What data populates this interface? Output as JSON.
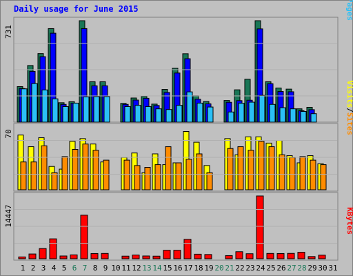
{
  "title": "Daily usage for June 2015",
  "colors": {
    "background": "#c0c0c0",
    "plot_background": "#c0c0c0",
    "title": "#0000ff",
    "hits": "#197656",
    "files": "#0000ff",
    "pages": "#2bc0f6",
    "visits": "#ffff00",
    "sites": "#ff8c00",
    "kbytes": "#ff0000",
    "weekend_day": "#197656",
    "weekday": "#000000"
  },
  "chart_data": [
    {
      "type": "bar",
      "name": "hits-files-pages",
      "ymax_label": "731",
      "ymax": 731,
      "legend": [
        "Pages",
        "Files",
        "Hits"
      ],
      "legend_colors": [
        "#2bc0f6",
        "#0000ff",
        "#197656"
      ],
      "days": [
        1,
        2,
        3,
        4,
        5,
        6,
        7,
        8,
        9,
        10,
        11,
        12,
        13,
        14,
        15,
        16,
        17,
        18,
        19,
        20,
        21,
        22,
        23,
        24,
        25,
        26,
        27,
        28,
        29,
        30,
        31
      ],
      "series": [
        {
          "name": "Hits",
          "values": [
            256,
            408,
            494,
            674,
            140,
            147,
            731,
            291,
            291,
            0,
            135,
            174,
            186,
            130,
            236,
            388,
            493,
            190,
            149,
            0,
            156,
            233,
            309,
            731,
            291,
            246,
            238,
            96,
            107,
            0,
            0
          ]
        },
        {
          "name": "Files",
          "values": [
            242,
            366,
            472,
            641,
            128,
            137,
            674,
            262,
            262,
            0,
            128,
            159,
            172,
            120,
            214,
            354,
            457,
            165,
            132,
            0,
            143,
            155,
            158,
            672,
            277,
            221,
            219,
            82,
            90,
            0,
            0
          ]
        },
        {
          "name": "Pages",
          "values": [
            240,
            278,
            232,
            168,
            112,
            137,
            182,
            184,
            184,
            0,
            112,
            121,
            112,
            96,
            91,
            121,
            218,
            137,
            109,
            0,
            73,
            136,
            144,
            193,
            128,
            104,
            96,
            77,
            61,
            0,
            0
          ]
        }
      ]
    },
    {
      "type": "bar",
      "name": "visits-sites",
      "ymax_label": "70",
      "ymax": 70,
      "legend": [
        "Sites",
        "Visits"
      ],
      "legend_colors": [
        "#ff8c00",
        "#ffff00"
      ],
      "days": [
        1,
        2,
        3,
        4,
        5,
        6,
        7,
        8,
        9,
        10,
        11,
        12,
        13,
        14,
        15,
        16,
        17,
        18,
        19,
        20,
        21,
        22,
        23,
        24,
        25,
        26,
        27,
        28,
        29,
        30,
        31
      ],
      "series": [
        {
          "name": "Visits",
          "values": [
            61,
            48,
            58,
            26,
            23,
            54,
            57,
            51,
            31,
            0,
            36,
            41,
            19,
            40,
            28,
            30,
            65,
            53,
            27,
            0,
            57,
            39,
            59,
            59,
            52,
            55,
            38,
            30,
            38,
            29,
            0
          ]
        },
        {
          "name": "Sites",
          "values": [
            31,
            31,
            49,
            19,
            37,
            45,
            51,
            44,
            33,
            0,
            33,
            27,
            25,
            28,
            48,
            30,
            34,
            40,
            19,
            0,
            46,
            48,
            44,
            54,
            48,
            39,
            36,
            37,
            33,
            28,
            0
          ]
        }
      ]
    },
    {
      "type": "bar",
      "name": "kbytes",
      "ymax_label": "14447",
      "ymax": 14447,
      "legend": [
        "KBytes"
      ],
      "legend_colors": [
        "#ff0000"
      ],
      "days": [
        1,
        2,
        3,
        4,
        5,
        6,
        7,
        8,
        9,
        10,
        11,
        12,
        13,
        14,
        15,
        16,
        17,
        18,
        19,
        20,
        21,
        22,
        23,
        24,
        25,
        26,
        27,
        28,
        29,
        30,
        31
      ],
      "series": [
        {
          "name": "KBytes",
          "values": [
            424,
            1097,
            2348,
            4583,
            636,
            899,
            10025,
            1197,
            1221,
            0,
            600,
            860,
            636,
            596,
            1950,
            1950,
            4465,
            1050,
            976,
            0,
            720,
            1622,
            1156,
            14447,
            1221,
            1196,
            1231,
            1505,
            502,
            826,
            0
          ]
        }
      ]
    }
  ],
  "x_axis": {
    "labels": [
      "1",
      "2",
      "3",
      "4",
      "5",
      "6",
      "7",
      "8",
      "9",
      "10",
      "11",
      "12",
      "13",
      "14",
      "15",
      "16",
      "17",
      "18",
      "19",
      "20",
      "21",
      "22",
      "23",
      "24",
      "25",
      "26",
      "27",
      "28",
      "29",
      "30",
      "31"
    ],
    "weekend_days": [
      6,
      7,
      13,
      14,
      20,
      21,
      27,
      28
    ]
  }
}
